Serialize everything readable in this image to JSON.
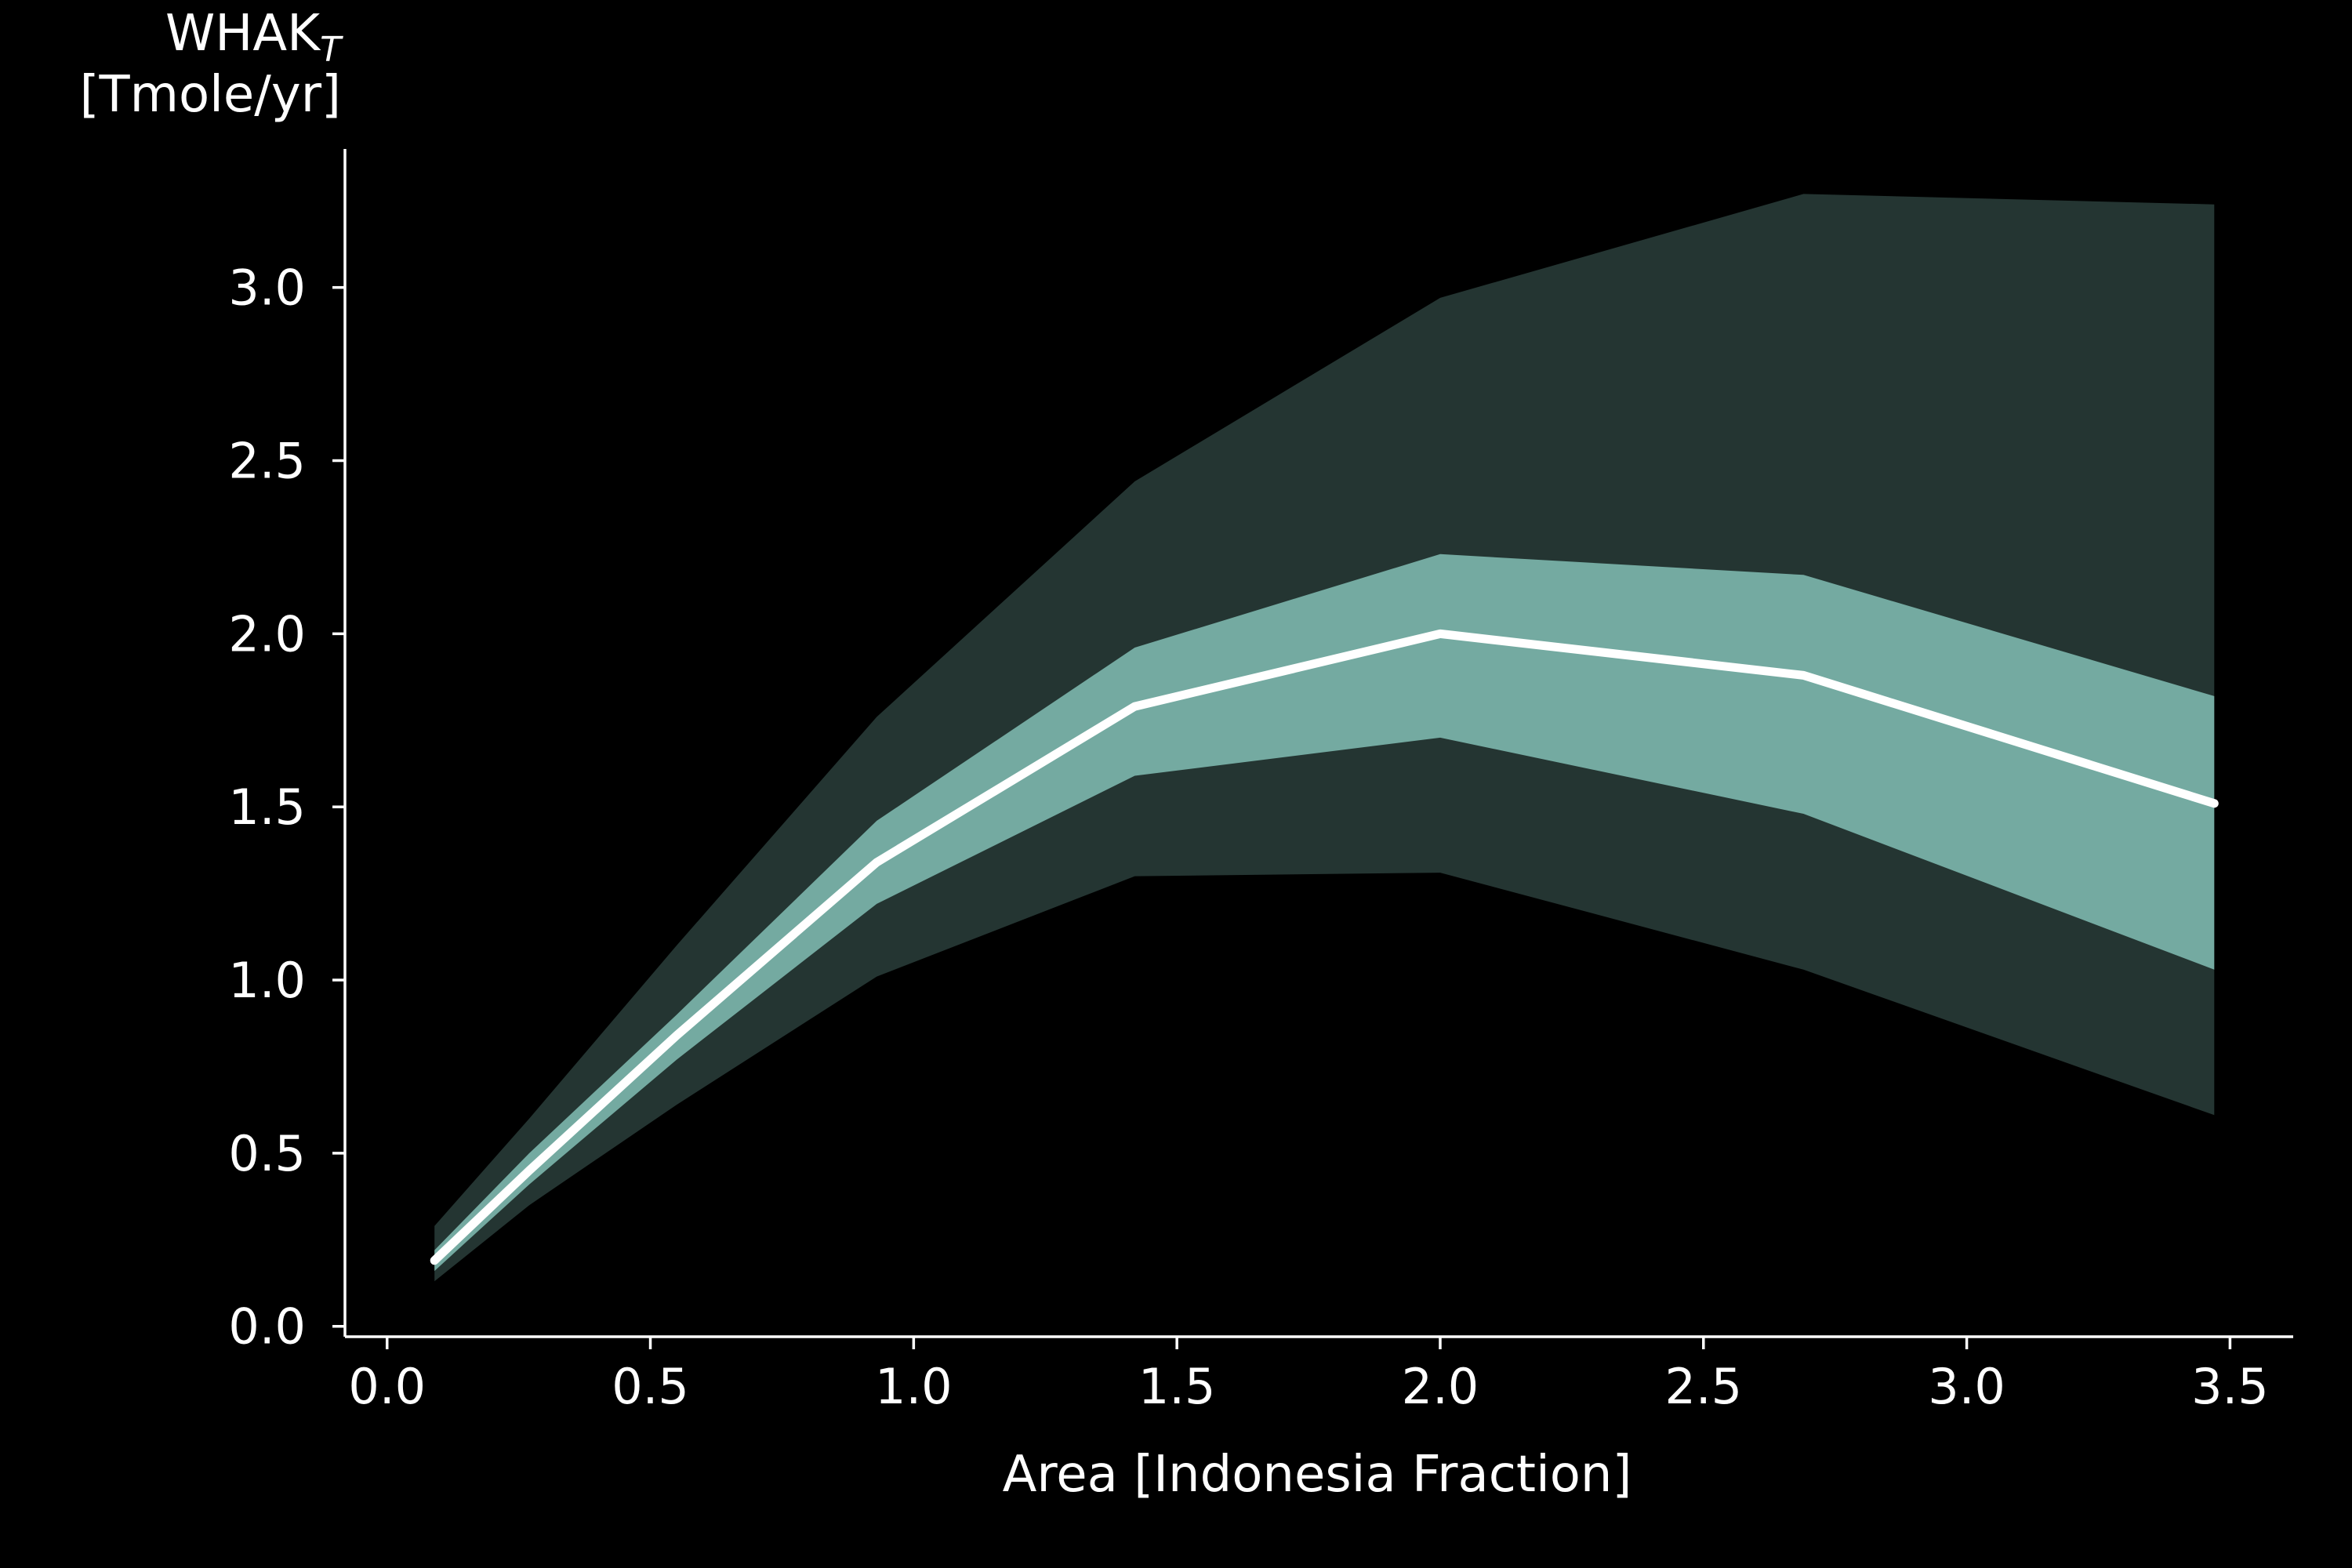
{
  "chart_data": {
    "type": "line",
    "title": "",
    "xlabel": "Area [Indonesia Fraction]",
    "ylabel": {
      "main": "WHAK",
      "subscript": "T",
      "units": "[Tmole/yr]"
    },
    "xlim": [
      -0.08,
      3.62
    ],
    "ylim": [
      -0.03,
      3.4
    ],
    "xticks": [
      0.0,
      0.5,
      1.0,
      1.5,
      2.0,
      2.5,
      3.0,
      3.5
    ],
    "xtick_labels": [
      "0.0",
      "0.5",
      "1.0",
      "1.5",
      "2.0",
      "2.5",
      "3.0",
      "3.5"
    ],
    "yticks": [
      0.0,
      0.5,
      1.0,
      1.5,
      2.0,
      2.5,
      3.0
    ],
    "ytick_labels": [
      "0.0",
      "0.5",
      "1.0",
      "1.5",
      "2.0",
      "2.5",
      "3.0"
    ],
    "grid": false,
    "legend": "none",
    "x": [
      0.09,
      0.27,
      0.55,
      0.93,
      1.42,
      2.0,
      2.69,
      3.47
    ],
    "series": [
      {
        "values": [
          0.19,
          0.45,
          0.84,
          1.34,
          1.79,
          2.0,
          1.88,
          1.51
        ],
        "color": "#ffffff"
      }
    ],
    "bands": [
      {
        "kind": "outer",
        "lower": [
          0.13,
          0.35,
          0.64,
          1.01,
          1.3,
          1.31,
          1.03,
          0.61
        ],
        "upper": [
          0.29,
          0.6,
          1.1,
          1.76,
          2.44,
          2.97,
          3.27,
          3.24
        ],
        "color": "#243532"
      },
      {
        "kind": "inner",
        "lower": [
          0.16,
          0.41,
          0.77,
          1.22,
          1.59,
          1.7,
          1.48,
          1.03
        ],
        "upper": [
          0.22,
          0.5,
          0.9,
          1.46,
          1.96,
          2.23,
          2.17,
          1.82
        ],
        "color": "#74aaa1"
      }
    ]
  }
}
